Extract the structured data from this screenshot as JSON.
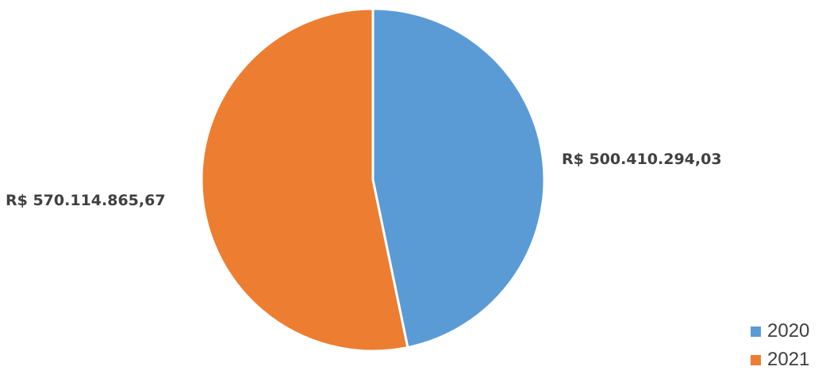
{
  "chart_data": {
    "type": "pie",
    "title": "",
    "categories": [
      "2020",
      "2021"
    ],
    "values": [
      500410294.03,
      570114865.67
    ],
    "data_labels": [
      "R$ 500.410.294,03",
      "R$ 570.114.865,67"
    ],
    "colors": [
      "#5B9BD5",
      "#ED7D31"
    ],
    "legend_position": "bottom-right",
    "start_angle_deg": 0,
    "direction": "clockwise"
  }
}
